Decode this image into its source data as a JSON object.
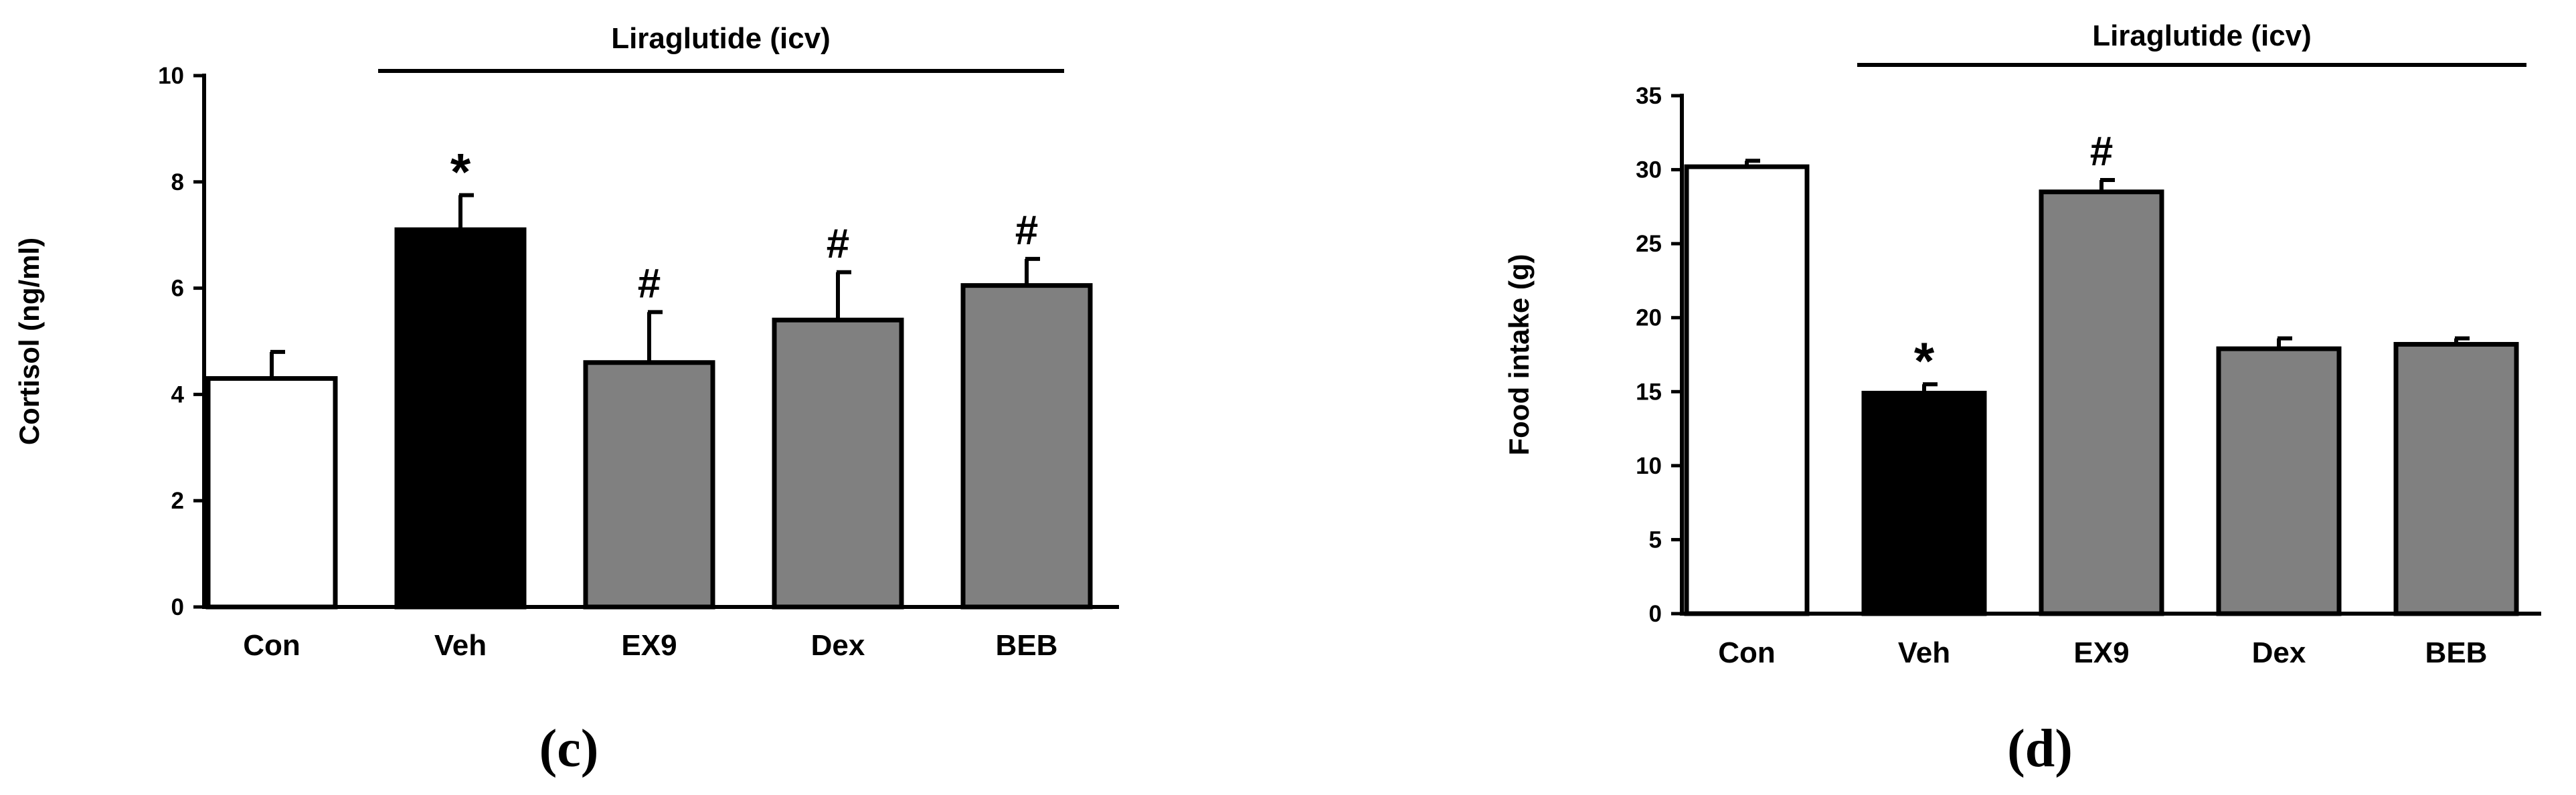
{
  "chart_data": [
    {
      "type": "bar",
      "panel_label": "(c)",
      "ylabel": "Cortisol (ng/ml)",
      "group_label": "Liraglutide (icv)",
      "categories": [
        "Con",
        "Veh",
        "EX9",
        "Dex",
        "BEB"
      ],
      "values": [
        4.3,
        7.1,
        4.6,
        5.4,
        6.05
      ],
      "errors": [
        0.5,
        0.65,
        0.95,
        0.9,
        0.5
      ],
      "bar_colors": [
        "#ffffff",
        "#000000",
        "#808080",
        "#808080",
        "#808080"
      ],
      "markers": [
        "",
        "*",
        "#",
        "#",
        "#"
      ],
      "ylim": [
        0,
        10
      ],
      "yticks": [
        0,
        2,
        4,
        6,
        8,
        10
      ],
      "grid": false,
      "legend": "none"
    },
    {
      "type": "bar",
      "panel_label": "(d)",
      "ylabel": "Food intake (g)",
      "group_label": "Liraglutide (icv)",
      "categories": [
        "Con",
        "Veh",
        "EX9",
        "Dex",
        "BEB"
      ],
      "values": [
        30.2,
        14.9,
        28.5,
        17.9,
        18.2
      ],
      "errors": [
        0.4,
        0.6,
        0.8,
        0.7,
        0.4
      ],
      "bar_colors": [
        "#ffffff",
        "#000000",
        "#808080",
        "#808080",
        "#808080"
      ],
      "markers": [
        "",
        "*",
        "#",
        "",
        ""
      ],
      "ylim": [
        0,
        35
      ],
      "yticks": [
        0,
        5,
        10,
        15,
        20,
        25,
        30,
        35
      ],
      "grid": false,
      "legend": "none"
    }
  ]
}
